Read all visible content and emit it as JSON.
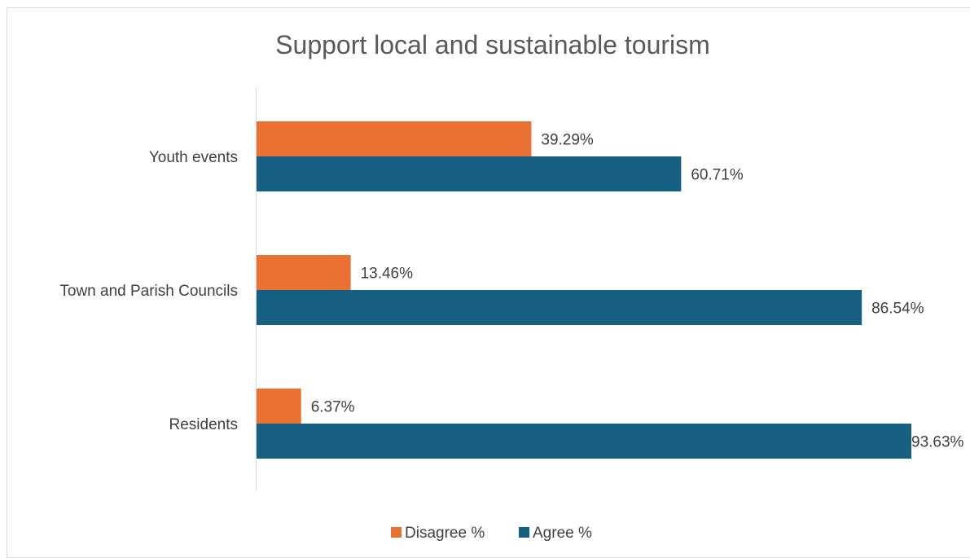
{
  "chart_data": {
    "type": "bar",
    "orientation": "horizontal",
    "title": "Support local and sustainable tourism",
    "categories": [
      "Youth events",
      "Town and Parish Councils",
      "Residents"
    ],
    "series": [
      {
        "name": "Disagree %",
        "values": [
          39.29,
          13.46,
          6.37
        ],
        "labels": [
          "39.29%",
          "13.46%",
          "6.37%"
        ],
        "color": "#e97132"
      },
      {
        "name": "Agree %",
        "values": [
          60.71,
          86.54,
          93.63
        ],
        "labels": [
          "60.71%",
          "86.54%",
          "93.63%"
        ],
        "color": "#156082"
      }
    ],
    "xlim": [
      0,
      100
    ],
    "grid": false,
    "legend_position": "bottom"
  }
}
